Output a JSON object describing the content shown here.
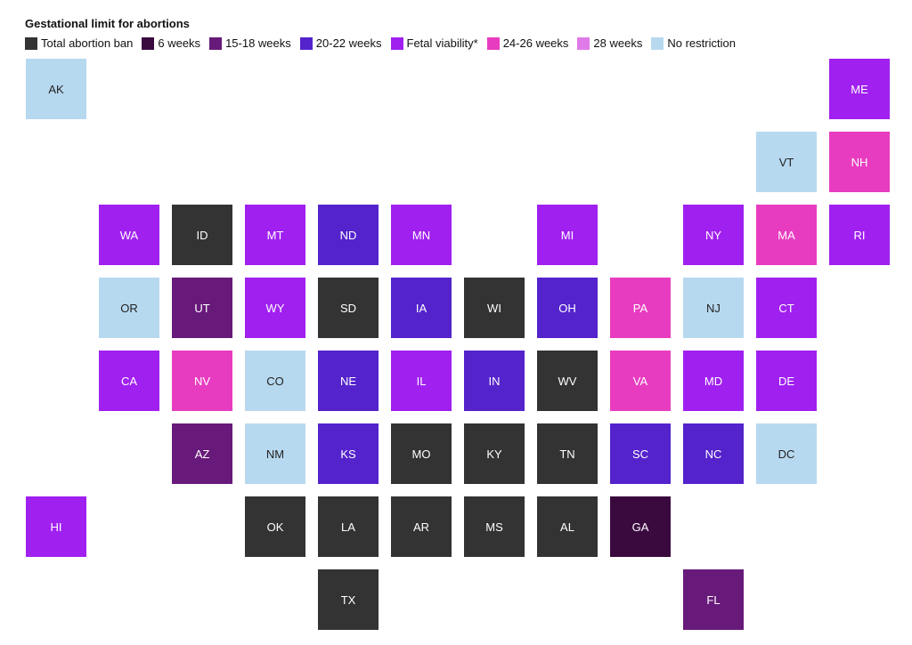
{
  "title": "Gestational limit for abortions",
  "categories": {
    "ban": {
      "label": "Total abortion ban",
      "color": "#333333"
    },
    "w6": {
      "label": "6 weeks",
      "color": "#3a0a3f"
    },
    "w15": {
      "label": "15-18 weeks",
      "color": "#681a7a"
    },
    "w20": {
      "label": "20-22 weeks",
      "color": "#5423cc"
    },
    "viability": {
      "label": "Fetal viability*",
      "color": "#a020f0"
    },
    "w24": {
      "label": "24-26 weeks",
      "color": "#e83cc0"
    },
    "w28": {
      "label": "28 weeks",
      "color": "#e07ae8"
    },
    "none": {
      "label": "No restriction",
      "color": "#b7d9f0"
    }
  },
  "legend_order": [
    "ban",
    "w6",
    "w15",
    "w20",
    "viability",
    "w24",
    "w28",
    "none"
  ],
  "states": [
    {
      "abbr": "AK",
      "cat": "none"
    },
    {
      "abbr": "ME",
      "cat": "viability"
    },
    {
      "abbr": "VT",
      "cat": "none"
    },
    {
      "abbr": "NH",
      "cat": "w24"
    },
    {
      "abbr": "WA",
      "cat": "viability"
    },
    {
      "abbr": "ID",
      "cat": "ban"
    },
    {
      "abbr": "MT",
      "cat": "viability"
    },
    {
      "abbr": "ND",
      "cat": "w20"
    },
    {
      "abbr": "MN",
      "cat": "viability"
    },
    {
      "abbr": "MI",
      "cat": "viability"
    },
    {
      "abbr": "NY",
      "cat": "viability"
    },
    {
      "abbr": "MA",
      "cat": "w24"
    },
    {
      "abbr": "RI",
      "cat": "viability"
    },
    {
      "abbr": "OR",
      "cat": "none"
    },
    {
      "abbr": "UT",
      "cat": "w15"
    },
    {
      "abbr": "WY",
      "cat": "viability"
    },
    {
      "abbr": "SD",
      "cat": "ban"
    },
    {
      "abbr": "IA",
      "cat": "w20"
    },
    {
      "abbr": "WI",
      "cat": "ban"
    },
    {
      "abbr": "OH",
      "cat": "w20"
    },
    {
      "abbr": "PA",
      "cat": "w24"
    },
    {
      "abbr": "NJ",
      "cat": "none"
    },
    {
      "abbr": "CT",
      "cat": "viability"
    },
    {
      "abbr": "CA",
      "cat": "viability"
    },
    {
      "abbr": "NV",
      "cat": "w24"
    },
    {
      "abbr": "CO",
      "cat": "none"
    },
    {
      "abbr": "NE",
      "cat": "w20"
    },
    {
      "abbr": "IL",
      "cat": "viability"
    },
    {
      "abbr": "IN",
      "cat": "w20"
    },
    {
      "abbr": "WV",
      "cat": "ban"
    },
    {
      "abbr": "VA",
      "cat": "w24"
    },
    {
      "abbr": "MD",
      "cat": "viability"
    },
    {
      "abbr": "DE",
      "cat": "viability"
    },
    {
      "abbr": "AZ",
      "cat": "w15"
    },
    {
      "abbr": "NM",
      "cat": "none"
    },
    {
      "abbr": "KS",
      "cat": "w20"
    },
    {
      "abbr": "MO",
      "cat": "ban"
    },
    {
      "abbr": "KY",
      "cat": "ban"
    },
    {
      "abbr": "TN",
      "cat": "ban"
    },
    {
      "abbr": "SC",
      "cat": "w20"
    },
    {
      "abbr": "NC",
      "cat": "w20"
    },
    {
      "abbr": "DC",
      "cat": "none"
    },
    {
      "abbr": "HI",
      "cat": "viability"
    },
    {
      "abbr": "OK",
      "cat": "ban"
    },
    {
      "abbr": "LA",
      "cat": "ban"
    },
    {
      "abbr": "AR",
      "cat": "ban"
    },
    {
      "abbr": "MS",
      "cat": "ban"
    },
    {
      "abbr": "AL",
      "cat": "ban"
    },
    {
      "abbr": "GA",
      "cat": "w6"
    },
    {
      "abbr": "TX",
      "cat": "ban"
    },
    {
      "abbr": "FL",
      "cat": "w15"
    }
  ]
}
